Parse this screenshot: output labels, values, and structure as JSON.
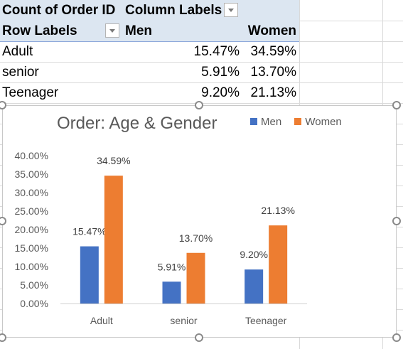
{
  "pivot": {
    "header1": {
      "count_label": "Count of Order ID",
      "column_labels": "Column Labels"
    },
    "header2": {
      "row_labels": "Row Labels",
      "col_men": "Men",
      "col_women": "Women"
    },
    "rows": [
      {
        "label": "Adult",
        "men": "15.47%",
        "women": "34.59%"
      },
      {
        "label": "senior",
        "men": "5.91%",
        "women": "13.70%"
      },
      {
        "label": "Teenager",
        "men": "9.20%",
        "women": "21.13%"
      }
    ]
  },
  "chart_data": {
    "type": "bar",
    "title": "Order: Age & Gender",
    "categories": [
      "Adult",
      "senior",
      "Teenager"
    ],
    "series": [
      {
        "name": "Men",
        "color": "#4472c4",
        "values": [
          15.47,
          5.91,
          9.2
        ],
        "labels": [
          "15.47%",
          "5.91%",
          "9.20%"
        ]
      },
      {
        "name": "Women",
        "color": "#ed7d31",
        "values": [
          34.59,
          13.7,
          21.13
        ],
        "labels": [
          "34.59%",
          "13.70%",
          "21.13%"
        ]
      }
    ],
    "ylim": [
      0,
      40
    ],
    "yticks": [
      0,
      5,
      10,
      15,
      20,
      25,
      30,
      35,
      40
    ],
    "ytick_labels": [
      "0.00%",
      "5.00%",
      "10.00%",
      "15.00%",
      "20.00%",
      "25.00%",
      "30.00%",
      "35.00%",
      "40.00%"
    ],
    "grid": false,
    "legend_position": "top-right"
  }
}
